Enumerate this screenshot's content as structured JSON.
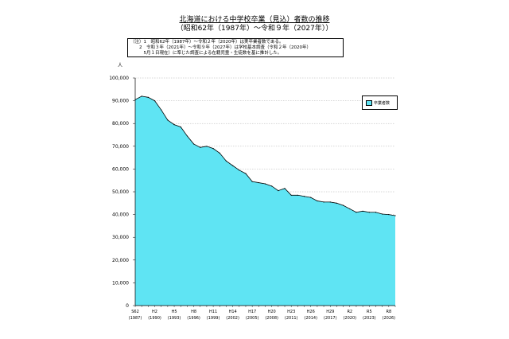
{
  "title_line1": "北海道における中学校卒業（見込）者数の推移",
  "title_line2": "（昭和62年（1987年）～令和９年（2027年））",
  "note": {
    "label": "（注）",
    "items": [
      "1　昭和62年（1987年）～令和２年（2020年）は実卒業者数である。",
      "2　令和３年（2021年）～令和９年（2027年）は学校基本調査（令和２年（2020年）",
      "　5月１日現在）に準じた調査による在籍児童・生徒数を基に推計した。"
    ]
  },
  "chart_data": {
    "type": "area",
    "title": "北海道における中学校卒業（見込）者数の推移",
    "ylabel": "人",
    "ylim": [
      0,
      100000
    ],
    "yticks": [
      "0",
      "10,000",
      "20,000",
      "30,000",
      "40,000",
      "50,000",
      "60,000",
      "70,000",
      "80,000",
      "90,000",
      "100,000"
    ],
    "x": [
      1987,
      1988,
      1989,
      1990,
      1991,
      1992,
      1993,
      1994,
      1995,
      1996,
      1997,
      1998,
      1999,
      2000,
      2001,
      2002,
      2003,
      2004,
      2005,
      2006,
      2007,
      2008,
      2009,
      2010,
      2011,
      2012,
      2013,
      2014,
      2015,
      2016,
      2017,
      2018,
      2019,
      2020,
      2021,
      2022,
      2023,
      2024,
      2025,
      2026,
      2027
    ],
    "series": [
      {
        "name": "卒業者数",
        "color": "#5fe4f3",
        "values": [
          90500,
          92000,
          91500,
          90000,
          86000,
          81500,
          79500,
          78500,
          74500,
          71000,
          69500,
          70000,
          69000,
          67000,
          63500,
          61500,
          59500,
          58000,
          54500,
          54000,
          53500,
          52500,
          50500,
          51500,
          48500,
          48500,
          48000,
          47500,
          46000,
          45500,
          45500,
          45000,
          44000,
          42500,
          41000,
          41500,
          41000,
          41000,
          40200,
          40000,
          39500
        ]
      }
    ],
    "xtick_labels": [
      {
        "year": 1987,
        "era": "S62",
        "west": "(1987)"
      },
      {
        "year": 1990,
        "era": "H2",
        "west": "(1990)"
      },
      {
        "year": 1993,
        "era": "H5",
        "west": "(1993)"
      },
      {
        "year": 1996,
        "era": "H8",
        "west": "(1996)"
      },
      {
        "year": 1999,
        "era": "H11",
        "west": "(1999)"
      },
      {
        "year": 2002,
        "era": "H14",
        "west": "(2002)"
      },
      {
        "year": 2005,
        "era": "H17",
        "west": "(2005)"
      },
      {
        "year": 2008,
        "era": "H20",
        "west": "(2008)"
      },
      {
        "year": 2011,
        "era": "H23",
        "west": "(2011)"
      },
      {
        "year": 2014,
        "era": "H26",
        "west": "(2014)"
      },
      {
        "year": 2017,
        "era": "H29",
        "west": "(2017)"
      },
      {
        "year": 2020,
        "era": "R2",
        "west": "(2020)"
      },
      {
        "year": 2023,
        "era": "R5",
        "west": "(2023)"
      },
      {
        "year": 2026,
        "era": "R8",
        "west": "(2026)"
      }
    ],
    "legend_position": "top-right"
  }
}
